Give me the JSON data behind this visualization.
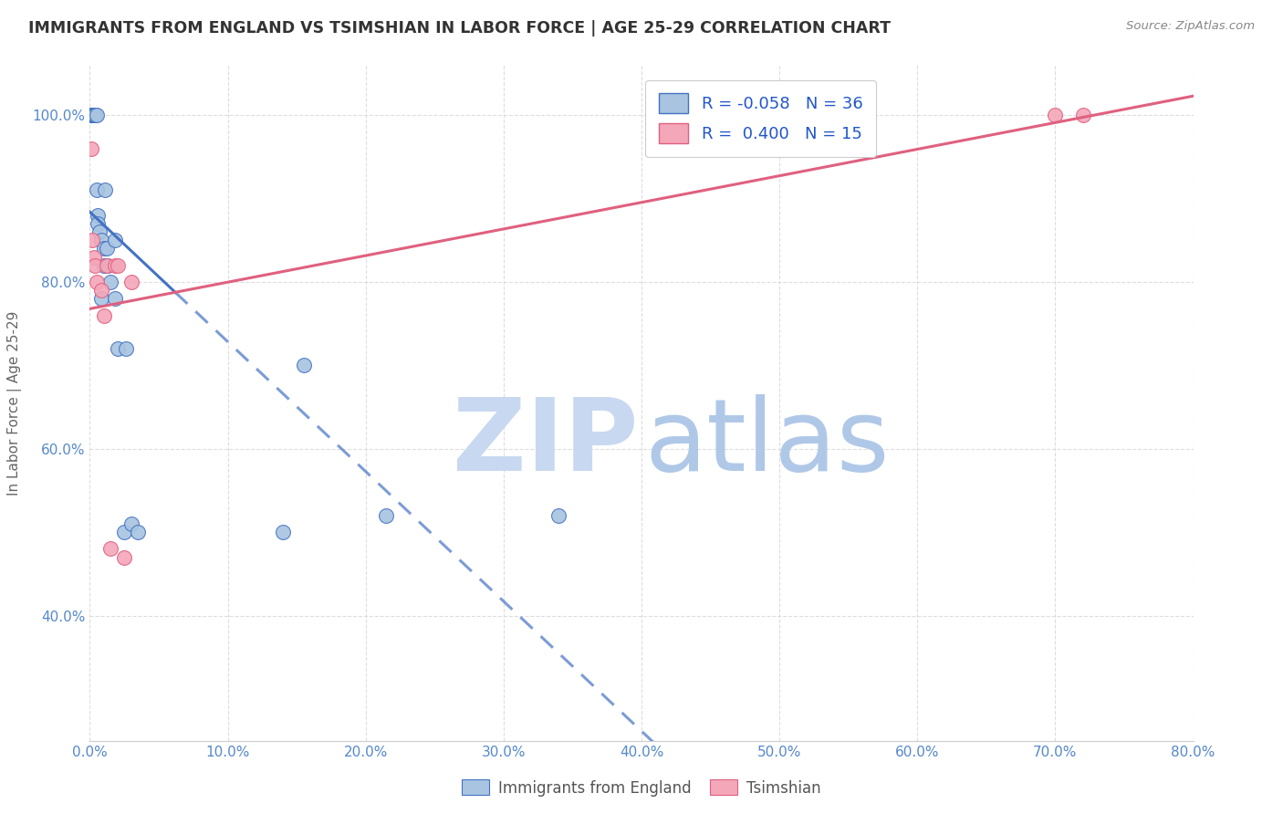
{
  "title": "IMMIGRANTS FROM ENGLAND VS TSIMSHIAN IN LABOR FORCE | AGE 25-29 CORRELATION CHART",
  "source": "Source: ZipAtlas.com",
  "ylabel": "In Labor Force | Age 25-29",
  "xlim": [
    0.0,
    0.8
  ],
  "ylim": [
    0.25,
    1.06
  ],
  "england_R": -0.058,
  "england_N": 36,
  "tsimshian_R": 0.4,
  "tsimshian_N": 15,
  "england_color": "#a8c4e0",
  "tsimshian_color": "#f4a7b9",
  "england_line_color": "#4472c4",
  "tsimshian_line_color": "#e06080",
  "legend_text_color": "#2255cc",
  "watermark_zip_color": "#c8d8f0",
  "watermark_atlas_color": "#b0c8e8",
  "england_x": [
    0.001,
    0.002,
    0.002,
    0.002,
    0.003,
    0.003,
    0.003,
    0.003,
    0.004,
    0.004,
    0.004,
    0.004,
    0.005,
    0.005,
    0.006,
    0.006,
    0.007,
    0.008,
    0.008,
    0.01,
    0.01,
    0.011,
    0.012,
    0.013,
    0.015,
    0.018,
    0.018,
    0.02,
    0.025,
    0.026,
    0.03,
    0.035,
    0.14,
    0.155,
    0.215,
    0.34
  ],
  "england_y": [
    1.0,
    1.0,
    1.0,
    1.0,
    1.0,
    1.0,
    1.0,
    1.0,
    1.0,
    1.0,
    1.0,
    1.0,
    1.0,
    0.91,
    0.88,
    0.87,
    0.86,
    0.85,
    0.78,
    0.84,
    0.82,
    0.91,
    0.84,
    0.82,
    0.8,
    0.85,
    0.78,
    0.72,
    0.5,
    0.72,
    0.51,
    0.5,
    0.5,
    0.7,
    0.52,
    0.52
  ],
  "tsimshian_x": [
    0.001,
    0.002,
    0.003,
    0.004,
    0.005,
    0.008,
    0.01,
    0.012,
    0.015,
    0.018,
    0.02,
    0.025,
    0.03,
    0.7,
    0.72
  ],
  "tsimshian_y": [
    0.96,
    0.85,
    0.83,
    0.82,
    0.8,
    0.79,
    0.76,
    0.82,
    0.48,
    0.82,
    0.82,
    0.47,
    0.8,
    1.0,
    1.0
  ],
  "grid_color": "#dddddd",
  "background_color": "#ffffff",
  "x_ticks": [
    0.0,
    0.1,
    0.2,
    0.3,
    0.4,
    0.5,
    0.6,
    0.7,
    0.8
  ],
  "y_ticks": [
    0.4,
    0.6,
    0.8,
    1.0
  ],
  "tick_color": "#5588cc"
}
